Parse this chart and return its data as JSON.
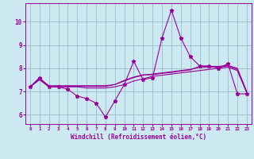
{
  "xlabel": "Windchill (Refroidissement éolien,°C)",
  "x": [
    0,
    1,
    2,
    3,
    4,
    5,
    6,
    7,
    8,
    9,
    10,
    11,
    12,
    13,
    14,
    15,
    16,
    17,
    18,
    19,
    20,
    21,
    22,
    23
  ],
  "line1": [
    7.2,
    7.6,
    7.2,
    7.2,
    7.1,
    6.8,
    6.7,
    6.5,
    5.9,
    6.6,
    7.3,
    8.3,
    7.5,
    7.6,
    9.3,
    10.5,
    9.3,
    8.5,
    8.1,
    8.1,
    8.0,
    8.2,
    6.9,
    6.9
  ],
  "line2": [
    7.2,
    7.5,
    7.2,
    7.2,
    7.2,
    7.2,
    7.15,
    7.15,
    7.15,
    7.2,
    7.3,
    7.45,
    7.55,
    7.65,
    7.7,
    7.75,
    7.8,
    7.85,
    7.9,
    7.95,
    8.0,
    8.05,
    7.9,
    6.95
  ],
  "line3": [
    7.2,
    7.55,
    7.2,
    7.2,
    7.22,
    7.22,
    7.22,
    7.22,
    7.22,
    7.3,
    7.45,
    7.6,
    7.7,
    7.75,
    7.8,
    7.85,
    7.9,
    7.95,
    8.05,
    8.05,
    8.05,
    8.1,
    7.95,
    6.95
  ],
  "line4": [
    7.2,
    7.55,
    7.25,
    7.25,
    7.25,
    7.25,
    7.25,
    7.25,
    7.25,
    7.3,
    7.48,
    7.62,
    7.72,
    7.72,
    7.78,
    7.82,
    7.88,
    7.93,
    8.08,
    8.08,
    8.08,
    8.12,
    8.0,
    7.0
  ],
  "line_color": "#990099",
  "bg_color": "#cce8f0",
  "grid_color": "#99bbcc",
  "ylim": [
    5.6,
    10.8
  ],
  "yticks": [
    6,
    7,
    8,
    9,
    10
  ],
  "marker": "*",
  "markersize": 3.5,
  "linewidth": 0.8
}
